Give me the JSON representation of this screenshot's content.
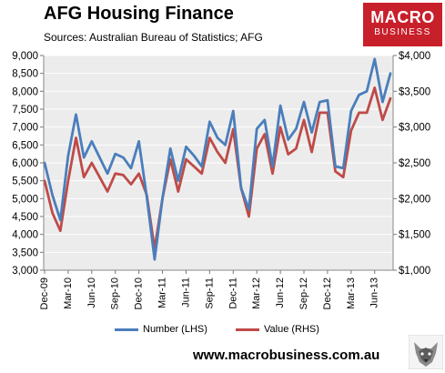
{
  "header": {
    "title": "AFG Housing  Finance",
    "subtitle": "Sources: Australian Bureau of Statistics; AFG"
  },
  "logo": {
    "line1": "MACRO",
    "line2": "BUSINESS"
  },
  "footer": {
    "url": "www.macrobusiness.com.au"
  },
  "colors": {
    "number": "#4a7ebb",
    "value": "#be4b48",
    "plot_bg": "#ececec",
    "logo_bg": "#c8202b"
  },
  "chart_data": {
    "type": "line",
    "title": "AFG Housing  Finance",
    "x_tick_labels": [
      "Dec-09",
      "Mar-10",
      "Jun-10",
      "Sep-10",
      "Dec-10",
      "Mar-11",
      "Jun-11",
      "Sep-11",
      "Dec-11",
      "Mar-12",
      "Jun-12",
      "Sep-12",
      "Dec-12",
      "Mar-13",
      "Jun-13"
    ],
    "y_left": {
      "min": 3000,
      "max": 9000,
      "step": 500,
      "tick_labels": [
        "3,000",
        "3,500",
        "4,000",
        "4,500",
        "5,000",
        "5,500",
        "6,000",
        "6,500",
        "7,000",
        "7,500",
        "8,000",
        "8,500",
        "9,000"
      ]
    },
    "y_right": {
      "min": 1000,
      "max": 4000,
      "step": 500,
      "tick_labels": [
        "$1,000",
        "$1,500",
        "$2,000",
        "$2,500",
        "$3,000",
        "$3,500",
        "$4,000"
      ]
    },
    "grid": true,
    "legend_position": "bottom",
    "series": [
      {
        "name": "Number (LHS)",
        "axis": "left",
        "values": [
          6000,
          5100,
          4400,
          6200,
          7350,
          6150,
          6600,
          6150,
          5700,
          6250,
          6150,
          5850,
          6600,
          5050,
          3300,
          5000,
          6400,
          5500,
          6450,
          6200,
          5900,
          7150,
          6700,
          6500,
          7450,
          5300,
          4700,
          6950,
          7200,
          5900,
          7600,
          6650,
          6950,
          7700,
          6850,
          7700,
          7750,
          5900,
          5850,
          7450,
          7900,
          8000,
          8900,
          7700,
          8500
        ]
      },
      {
        "name": "Value (RHS)",
        "axis": "right",
        "values": [
          2250,
          1800,
          1550,
          2250,
          2850,
          2300,
          2500,
          2300,
          2100,
          2350,
          2330,
          2200,
          2350,
          2050,
          1300,
          2000,
          2550,
          2100,
          2550,
          2450,
          2350,
          2850,
          2650,
          2500,
          2970,
          2150,
          1750,
          2700,
          2900,
          2350,
          3000,
          2620,
          2700,
          3100,
          2650,
          3200,
          3200,
          2380,
          2300,
          2950,
          3200,
          3200,
          3550,
          3100,
          3400
        ]
      }
    ]
  }
}
